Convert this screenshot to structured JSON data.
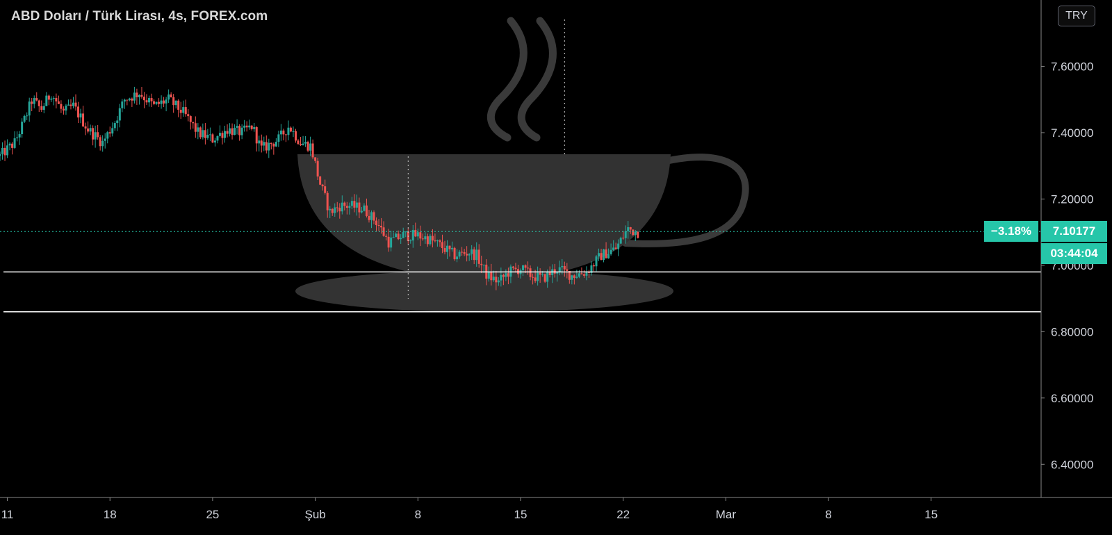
{
  "header": {
    "title": "ABD Doları / Türk Lirası, 4s, FOREX.com",
    "currency": "TRY"
  },
  "price_display": {
    "last_price": "7.10177",
    "change_percent": "−3.18%",
    "countdown": "03:44:04"
  },
  "colors": {
    "background": "#000000",
    "up": "#26a69a",
    "down": "#ef5350",
    "accent": "#26c6a9",
    "axis_text": "#d1d4dc",
    "cup": "#3a3a3a"
  },
  "chart_data": {
    "type": "candlestick",
    "title": "ABD Doları / Türk Lirası, 4s, FOREX.com",
    "ylim": [
      6.3,
      7.8
    ],
    "y_ticks": [
      "6.40000",
      "6.60000",
      "6.80000",
      "7.00000",
      "7.20000",
      "7.40000",
      "7.60000"
    ],
    "x_ticks": [
      "11",
      "18",
      "25",
      "Şub",
      "8",
      "15",
      "22",
      "Mar",
      "8",
      "15"
    ],
    "x_tick_days": [
      0,
      7,
      14,
      21,
      28,
      35,
      42,
      49,
      56,
      63
    ],
    "x_range_days": [
      -0.5,
      70.5
    ],
    "price_path": [
      [
        -0.5,
        7.33
      ],
      [
        0.5,
        7.37
      ],
      [
        1.0,
        7.42
      ],
      [
        1.7,
        7.5
      ],
      [
        2.3,
        7.47
      ],
      [
        3.0,
        7.52
      ],
      [
        3.8,
        7.46
      ],
      [
        4.5,
        7.48
      ],
      [
        5.5,
        7.41
      ],
      [
        6.5,
        7.37
      ],
      [
        7.3,
        7.43
      ],
      [
        8.0,
        7.5
      ],
      [
        9.0,
        7.52
      ],
      [
        10.0,
        7.48
      ],
      [
        11.0,
        7.5
      ],
      [
        12.0,
        7.46
      ],
      [
        13.0,
        7.4
      ],
      [
        14.0,
        7.38
      ],
      [
        15.0,
        7.41
      ],
      [
        16.0,
        7.4
      ],
      [
        16.7,
        7.42
      ],
      [
        17.3,
        7.35
      ],
      [
        18.5,
        7.38
      ],
      [
        19.2,
        7.42
      ],
      [
        20.0,
        7.37
      ],
      [
        20.7,
        7.36
      ],
      [
        21.3,
        7.25
      ],
      [
        22.0,
        7.16
      ],
      [
        22.7,
        7.18
      ],
      [
        23.3,
        7.18
      ],
      [
        24.3,
        7.17
      ],
      [
        25.2,
        7.13
      ],
      [
        26.0,
        7.07
      ],
      [
        27.0,
        7.09
      ],
      [
        28.0,
        7.09
      ],
      [
        28.7,
        7.08
      ],
      [
        29.5,
        7.06
      ],
      [
        30.5,
        7.03
      ],
      [
        31.5,
        7.04
      ],
      [
        32.0,
        7.03
      ],
      [
        32.7,
        6.97
      ],
      [
        33.5,
        6.95
      ],
      [
        34.2,
        6.98
      ],
      [
        35.0,
        6.99
      ],
      [
        35.7,
        6.97
      ],
      [
        36.5,
        6.96
      ],
      [
        37.5,
        6.99
      ],
      [
        38.5,
        6.97
      ],
      [
        39.5,
        6.98
      ],
      [
        40.5,
        7.03
      ],
      [
        41.5,
        7.05
      ],
      [
        42.3,
        7.11
      ],
      [
        43.0,
        7.1
      ]
    ],
    "annotations": {
      "horizontal_lines": [
        6.98,
        6.86
      ],
      "dotted_price_level": 7.10177,
      "vertical_dotted_day": 38.0
    }
  }
}
